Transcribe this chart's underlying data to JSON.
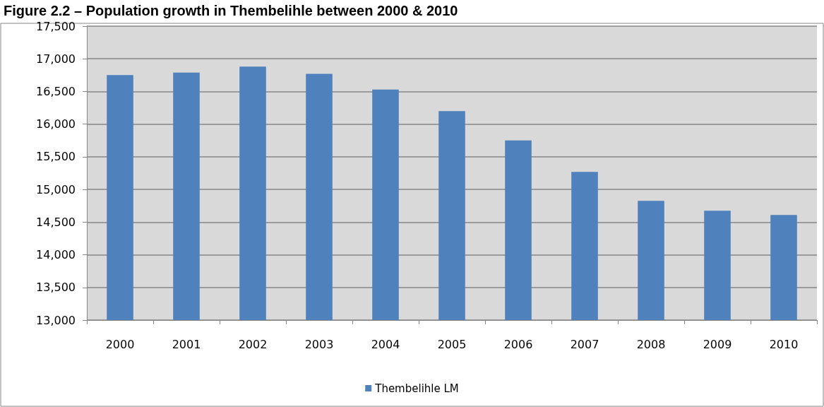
{
  "chart_data": {
    "type": "bar",
    "title": "Figure 2.2 – Population growth in Thembelihle between 2000 & 2010",
    "categories": [
      "2000",
      "2001",
      "2002",
      "2003",
      "2004",
      "2005",
      "2006",
      "2007",
      "2008",
      "2009",
      "2010"
    ],
    "series": [
      {
        "name": "Thembelihle LM",
        "color": "#4f81bd",
        "values": [
          16750,
          16790,
          16880,
          16770,
          16530,
          16200,
          15750,
          15270,
          14825,
          14675,
          14610
        ]
      }
    ],
    "ylim": [
      13000,
      17500
    ],
    "yticks": [
      {
        "value": 13000,
        "label": "13,000"
      },
      {
        "value": 13500,
        "label": "13,500"
      },
      {
        "value": 14000,
        "label": "14,000"
      },
      {
        "value": 14500,
        "label": "14,500"
      },
      {
        "value": 15000,
        "label": "15,000"
      },
      {
        "value": 15500,
        "label": "15,500"
      },
      {
        "value": 16000,
        "label": "16,000"
      },
      {
        "value": 16500,
        "label": "16,500"
      },
      {
        "value": 17000,
        "label": "17,000"
      },
      {
        "value": 17500,
        "label": "17,500"
      }
    ],
    "grid": "y",
    "legend": "bottom"
  }
}
